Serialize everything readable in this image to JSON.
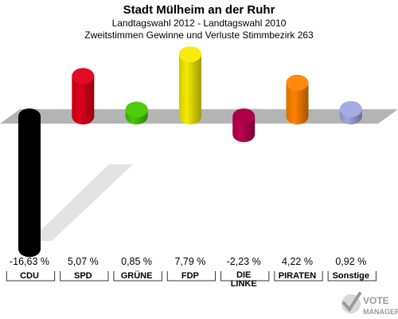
{
  "chart_data": {
    "type": "bar",
    "title": "Stadt Mülheim an der Ruhr",
    "subtitle_1": "Landtagswahl 2012 - Landtagswahl 2010",
    "subtitle_2": "Zweitstimmen Gewinne und Verluste Stimmbezirk 263",
    "categories": [
      "CDU",
      "SPD",
      "GRÜNE",
      "FDP",
      "DIE LINKE",
      "PIRATEN",
      "Sonstige"
    ],
    "values": [
      -16.63,
      5.07,
      0.85,
      7.79,
      -2.23,
      4.22,
      0.92
    ],
    "value_labels": [
      "-16,63 %",
      "5,07 %",
      "0,85 %",
      "7,79 %",
      "-2,23 %",
      "4,22 %",
      "0,92 %"
    ],
    "colors": [
      "#000000",
      "#e0001a",
      "#46c800",
      "#f5eb00",
      "#be0050",
      "#ff8200",
      "#a0a8e0"
    ],
    "zero_plane_color": "#b4b4b4",
    "legend": "none",
    "grid": false
  },
  "logo": {
    "line1": "VOTE",
    "line2": "MANAGER"
  }
}
